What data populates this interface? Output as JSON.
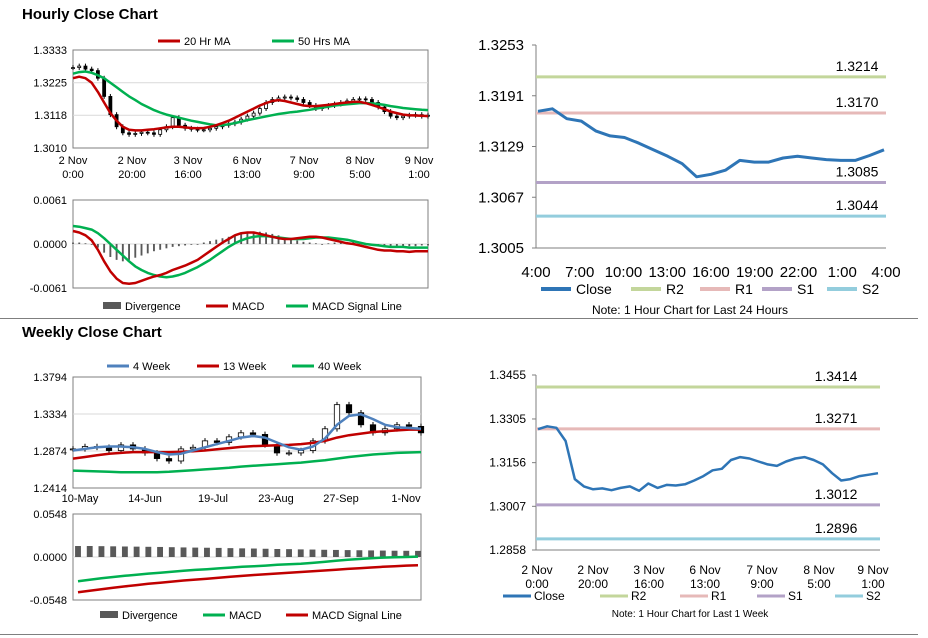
{
  "sections": {
    "hourly_title": "Hourly Close Chart",
    "weekly_title": "Weekly Close Chart"
  },
  "colors": {
    "blue": "#2e75b6",
    "ma_blue": "#4f81bd",
    "red": "#c00000",
    "green": "#00b050",
    "r2": "#c3d69b",
    "r1": "#e6b9b8",
    "s1": "#b3a2c7",
    "s2": "#93cddd",
    "candle": "#000000",
    "divergence": "#595959"
  },
  "chart_data": [
    {
      "id": "hourly_price",
      "type": "candlestick",
      "series": [
        {
          "name": "20 Hr MA"
        },
        {
          "name": "50 Hrs MA"
        }
      ],
      "yticks": [
        "1.3333",
        "1.3225",
        "1.3118",
        "1.3010"
      ],
      "ylim": [
        1.301,
        1.3333
      ],
      "xticks": [
        {
          "line1": "2 Nov",
          "line2": "0:00"
        },
        {
          "line1": "2 Nov",
          "line2": "20:00"
        },
        {
          "line1": "3 Nov",
          "line2": "16:00"
        },
        {
          "line1": "6 Nov",
          "line2": "13:00"
        },
        {
          "line1": "7 Nov",
          "line2": "9:00"
        },
        {
          "line1": "8 Nov",
          "line2": "5:00"
        },
        {
          "line1": "9 Nov",
          "line2": "1:00"
        }
      ],
      "close": [
        1.3275,
        1.328,
        1.327,
        1.3265,
        1.324,
        1.318,
        1.312,
        1.308,
        1.306,
        1.3055,
        1.3058,
        1.3062,
        1.306,
        1.3055,
        1.307,
        1.308,
        1.311,
        1.3085,
        1.3075,
        1.3072,
        1.307,
        1.307,
        1.3075,
        1.308,
        1.3085,
        1.309,
        1.3095,
        1.3105,
        1.3115,
        1.3125,
        1.314,
        1.316,
        1.317,
        1.3175,
        1.3178,
        1.3175,
        1.317,
        1.316,
        1.315,
        1.314,
        1.3145,
        1.315,
        1.3155,
        1.316,
        1.3165,
        1.317,
        1.3172,
        1.317,
        1.316,
        1.3145,
        1.313,
        1.3115,
        1.311,
        1.3115,
        1.3118,
        1.312,
        1.3115,
        1.3118
      ],
      "ma20": [
        1.324,
        1.3245,
        1.324,
        1.3225,
        1.3195,
        1.316,
        1.3125,
        1.31,
        1.308,
        1.307,
        1.3068,
        1.3068,
        1.307,
        1.3072,
        1.3075,
        1.3078,
        1.308,
        1.308,
        1.3078,
        1.3076,
        1.3075,
        1.3076,
        1.308,
        1.3085,
        1.3092,
        1.31,
        1.311,
        1.312,
        1.313,
        1.314,
        1.315,
        1.3158,
        1.3165,
        1.3168,
        1.3165,
        1.316,
        1.3155,
        1.315,
        1.3148,
        1.3148,
        1.315,
        1.3152,
        1.3155,
        1.3158,
        1.316,
        1.3162,
        1.3162,
        1.3158,
        1.3152,
        1.3145,
        1.3138,
        1.313,
        1.3125,
        1.312,
        1.3118,
        1.3117,
        1.3116,
        1.3115
      ],
      "ma50": [
        1.3255,
        1.326,
        1.3262,
        1.3258,
        1.325,
        1.324,
        1.3225,
        1.321,
        1.3195,
        1.318,
        1.3168,
        1.3155,
        1.3145,
        1.3135,
        1.3127,
        1.312,
        1.3115,
        1.311,
        1.3105,
        1.31,
        1.3096,
        1.3092,
        1.3088,
        1.3085,
        1.3085,
        1.3088,
        1.3092,
        1.3097,
        1.3102,
        1.3106,
        1.311,
        1.3114,
        1.3118,
        1.3122,
        1.3125,
        1.3128,
        1.313,
        1.3133,
        1.3136,
        1.314,
        1.3143,
        1.3146,
        1.315,
        1.3152,
        1.3154,
        1.3156,
        1.3158,
        1.3158,
        1.3157,
        1.3155,
        1.3152,
        1.3148,
        1.3145,
        1.3142,
        1.314,
        1.3138,
        1.3136,
        1.3135
      ]
    },
    {
      "id": "hourly_macd",
      "type": "line",
      "series": [
        {
          "name": "Divergence"
        },
        {
          "name": "MACD"
        },
        {
          "name": "MACD Signal Line"
        }
      ],
      "yticks": [
        "0.0061",
        "0.0000",
        "-0.0061"
      ],
      "ylim": [
        -0.0061,
        0.0061
      ],
      "divergence": [
        0.0002,
        0.0002,
        0.0001,
        0.0,
        -0.0005,
        -0.0012,
        -0.0018,
        -0.0022,
        -0.0024,
        -0.0022,
        -0.0019,
        -0.0016,
        -0.0013,
        -0.001,
        -0.0008,
        -0.0006,
        -0.0004,
        -0.0003,
        -0.0002,
        -0.0001,
        0.0,
        0.0002,
        0.0004,
        0.0006,
        0.0008,
        0.001,
        0.0012,
        0.0014,
        0.0015,
        0.0016,
        0.0017,
        0.0016,
        0.0014,
        0.0012,
        0.0009,
        0.0007,
        0.0005,
        0.0003,
        0.0002,
        0.0001,
        0.0,
        0.0001,
        0.0002,
        0.0002,
        0.0003,
        0.0003,
        0.0002,
        0.0001,
        0.0,
        -0.0001,
        -0.0002,
        -0.0003,
        -0.0004,
        -0.0004,
        -0.0003,
        -0.0003,
        -0.0002,
        -0.0002
      ],
      "macd": [
        0.0018,
        0.0016,
        0.0012,
        0.0005,
        -0.0008,
        -0.0024,
        -0.0038,
        -0.0048,
        -0.0054,
        -0.0055,
        -0.0054,
        -0.0051,
        -0.0048,
        -0.0045,
        -0.0043,
        -0.004,
        -0.0036,
        -0.0033,
        -0.003,
        -0.0026,
        -0.0022,
        -0.0016,
        -0.001,
        -0.0004,
        0.0002,
        0.0007,
        0.0012,
        0.0015,
        0.0016,
        0.0016,
        0.0014,
        0.0012,
        0.001,
        0.0008,
        0.0007,
        0.0007,
        0.0008,
        0.0009,
        0.001,
        0.001,
        0.0009,
        0.0007,
        0.0005,
        0.0003,
        0.0001,
        0.0,
        -0.0002,
        -0.0004,
        -0.0006,
        -0.0008,
        -0.0009,
        -0.0009,
        -0.001,
        -0.001,
        -0.0011,
        -0.001,
        -0.001,
        -0.001
      ],
      "signal": [
        0.0025,
        0.0024,
        0.0022,
        0.002,
        0.0015,
        0.0008,
        0.0,
        -0.0008,
        -0.0016,
        -0.0024,
        -0.0031,
        -0.0036,
        -0.004,
        -0.0043,
        -0.0045,
        -0.0046,
        -0.0045,
        -0.0043,
        -0.004,
        -0.0036,
        -0.0032,
        -0.0027,
        -0.0022,
        -0.0016,
        -0.001,
        -0.0004,
        0.0001,
        0.0005,
        0.0008,
        0.001,
        0.0011,
        0.0011,
        0.001,
        0.0009,
        0.0008,
        0.0007,
        0.0007,
        0.0007,
        0.0008,
        0.0009,
        0.0009,
        0.0009,
        0.0008,
        0.0007,
        0.0006,
        0.0004,
        0.0002,
        0.0,
        -0.0001,
        -0.0002,
        -0.0003,
        -0.0004,
        -0.0004,
        -0.0004,
        -0.0005,
        -0.0005,
        -0.0005,
        -0.0005
      ]
    },
    {
      "id": "hourly_levels",
      "type": "line",
      "series": [
        {
          "name": "Close"
        },
        {
          "name": "R2"
        },
        {
          "name": "R1"
        },
        {
          "name": "S1"
        },
        {
          "name": "S2"
        }
      ],
      "yticks": [
        "1.3253",
        "1.3191",
        "1.3129",
        "1.3067",
        "1.3005"
      ],
      "ylim": [
        1.3005,
        1.3253
      ],
      "xticks": [
        "4:00",
        "7:00",
        "10:00",
        "13:00",
        "16:00",
        "19:00",
        "22:00",
        "1:00",
        "4:00"
      ],
      "levels": {
        "R2": 1.3214,
        "R1": 1.317,
        "S1": 1.3085,
        "S2": 1.3044
      },
      "level_labels": {
        "R2": "1.3214",
        "R1": "1.3170",
        "S1": "1.3085",
        "S2": "1.3044"
      },
      "close": [
        1.3172,
        1.3175,
        1.3163,
        1.316,
        1.3148,
        1.3142,
        1.314,
        1.3133,
        1.3125,
        1.3117,
        1.3108,
        1.3092,
        1.3095,
        1.31,
        1.3112,
        1.311,
        1.311,
        1.3115,
        1.3117,
        1.3115,
        1.3113,
        1.3112,
        1.3112,
        1.3118,
        1.3125
      ],
      "note": "Note: 1 Hour Chart for Last 24 Hours"
    },
    {
      "id": "weekly_price",
      "type": "candlestick",
      "series": [
        {
          "name": "4 Week"
        },
        {
          "name": "13 Week"
        },
        {
          "name": "40 Week"
        }
      ],
      "yticks": [
        "1.3794",
        "1.3334",
        "1.2874",
        "1.2414"
      ],
      "ylim": [
        1.2414,
        1.3794
      ],
      "xticks": [
        "10-May",
        "14-Jun",
        "19-Jul",
        "23-Aug",
        "27-Sep",
        "1-Nov"
      ],
      "close": [
        1.29,
        1.293,
        1.292,
        1.288,
        1.295,
        1.29,
        1.285,
        1.278,
        1.275,
        1.29,
        1.292,
        1.3,
        1.298,
        1.305,
        1.31,
        1.308,
        1.295,
        1.285,
        1.285,
        1.288,
        1.3,
        1.315,
        1.345,
        1.335,
        1.32,
        1.31,
        1.315,
        1.32,
        1.318,
        1.31
      ],
      "ma4": [
        1.288,
        1.29,
        1.292,
        1.293,
        1.293,
        1.292,
        1.29,
        1.286,
        1.283,
        1.284,
        1.288,
        1.292,
        1.296,
        1.3,
        1.304,
        1.306,
        1.304,
        1.298,
        1.292,
        1.289,
        1.293,
        1.303,
        1.32,
        1.331,
        1.333,
        1.327,
        1.32,
        1.317,
        1.316,
        1.315
      ],
      "ma13": [
        1.278,
        1.28,
        1.282,
        1.284,
        1.285,
        1.286,
        1.286,
        1.286,
        1.286,
        1.2865,
        1.287,
        1.288,
        1.2895,
        1.291,
        1.2925,
        1.2935,
        1.294,
        1.2945,
        1.295,
        1.296,
        1.2975,
        1.3,
        1.304,
        1.307,
        1.309,
        1.311,
        1.312,
        1.313,
        1.314,
        1.314
      ],
      "ma40": [
        1.263,
        1.2625,
        1.262,
        1.2615,
        1.261,
        1.261,
        1.261,
        1.261,
        1.2615,
        1.2625,
        1.2635,
        1.2645,
        1.2655,
        1.2665,
        1.268,
        1.269,
        1.27,
        1.271,
        1.272,
        1.273,
        1.2745,
        1.276,
        1.278,
        1.28,
        1.2815,
        1.283,
        1.284,
        1.285,
        1.2855,
        1.286
      ]
    },
    {
      "id": "weekly_macd",
      "type": "line",
      "series": [
        {
          "name": "Divergence"
        },
        {
          "name": "MACD"
        },
        {
          "name": "MACD Signal Line"
        }
      ],
      "yticks": [
        "0.0548",
        "0.0000",
        "-0.0548"
      ],
      "ylim": [
        -0.0548,
        0.0548
      ],
      "divergence": [
        0.014,
        0.014,
        0.0138,
        0.0136,
        0.0134,
        0.0132,
        0.013,
        0.0128,
        0.0125,
        0.0122,
        0.012,
        0.0118,
        0.0116,
        0.0113,
        0.011,
        0.0108,
        0.0105,
        0.0102,
        0.01,
        0.0097,
        0.0095,
        0.0092,
        0.009,
        0.0088,
        0.0086,
        0.0084,
        0.0082,
        0.008,
        0.0079,
        0.0078
      ],
      "macd": [
        -0.031,
        -0.029,
        -0.027,
        -0.0255,
        -0.024,
        -0.0225,
        -0.0212,
        -0.02,
        -0.0188,
        -0.0175,
        -0.0165,
        -0.0155,
        -0.0145,
        -0.0135,
        -0.0125,
        -0.0118,
        -0.011,
        -0.01,
        -0.0092,
        -0.0085,
        -0.0075,
        -0.0062,
        -0.0048,
        -0.0035,
        -0.0025,
        -0.0015,
        -0.0008,
        -0.0003,
        0.0,
        0.0005
      ],
      "signal": [
        -0.045,
        -0.043,
        -0.041,
        -0.0392,
        -0.0375,
        -0.0358,
        -0.0342,
        -0.0328,
        -0.0314,
        -0.03,
        -0.0288,
        -0.0276,
        -0.0264,
        -0.0252,
        -0.0241,
        -0.023,
        -0.022,
        -0.021,
        -0.02,
        -0.0191,
        -0.0182,
        -0.0172,
        -0.0162,
        -0.0152,
        -0.0143,
        -0.0134,
        -0.0125,
        -0.0117,
        -0.011,
        -0.0104
      ]
    },
    {
      "id": "weekly_levels",
      "type": "line",
      "series": [
        {
          "name": "Close"
        },
        {
          "name": "R2"
        },
        {
          "name": "R1"
        },
        {
          "name": "S1"
        },
        {
          "name": "S2"
        }
      ],
      "yticks": [
        "1.3455",
        "1.3305",
        "1.3156",
        "1.3007",
        "1.2858"
      ],
      "ylim": [
        1.2858,
        1.3455
      ],
      "xticks": [
        {
          "line1": "2 Nov",
          "line2": "0:00"
        },
        {
          "line1": "2 Nov",
          "line2": "20:00"
        },
        {
          "line1": "3 Nov",
          "line2": "16:00"
        },
        {
          "line1": "6 Nov",
          "line2": "13:00"
        },
        {
          "line1": "7 Nov",
          "line2": "9:00"
        },
        {
          "line1": "8 Nov",
          "line2": "5:00"
        },
        {
          "line1": "9 Nov",
          "line2": "1:00"
        }
      ],
      "levels": {
        "R2": 1.3414,
        "R1": 1.3271,
        "S1": 1.3012,
        "S2": 1.2896
      },
      "level_labels": {
        "R2": "1.3414",
        "R1": "1.3271",
        "S1": "1.3012",
        "S2": "1.2896"
      },
      "close": [
        1.327,
        1.328,
        1.3275,
        1.323,
        1.31,
        1.3075,
        1.3065,
        1.3068,
        1.3062,
        1.307,
        1.3075,
        1.306,
        1.3085,
        1.307,
        1.308,
        1.3078,
        1.3082,
        1.3095,
        1.311,
        1.313,
        1.3135,
        1.3165,
        1.3175,
        1.317,
        1.316,
        1.315,
        1.3145,
        1.316,
        1.317,
        1.3175,
        1.3165,
        1.315,
        1.312,
        1.3095,
        1.31,
        1.311,
        1.3115,
        1.312
      ],
      "note": "Note: 1 Hour Chart for Last 1 Week"
    }
  ]
}
